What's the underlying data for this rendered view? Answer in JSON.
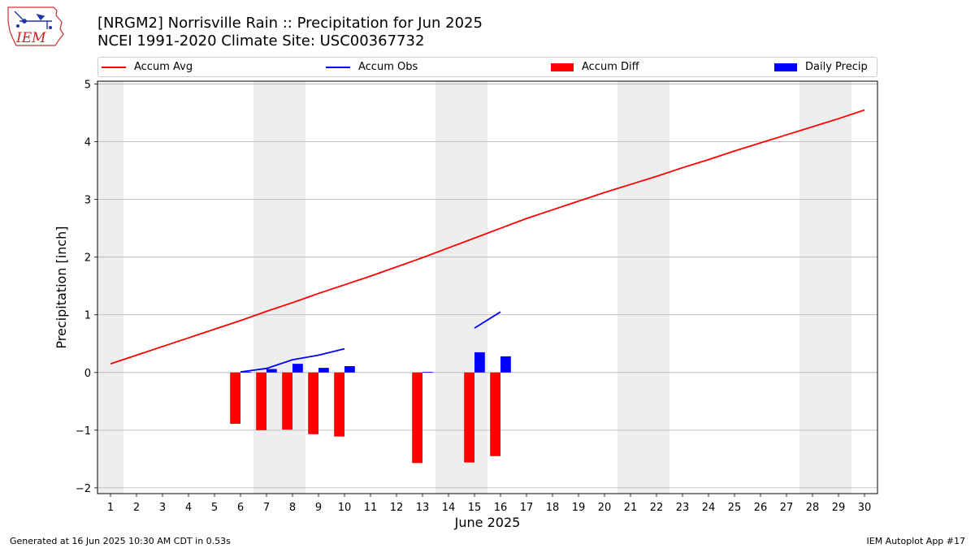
{
  "logo_text": "IEM",
  "header": {
    "title": "[NRGM2] Norrisville Rain :: Precipitation for Jun 2025",
    "subtitle": "NCEI 1991-2020 Climate Site: USC00367732"
  },
  "footer": {
    "left": "Generated at 16 Jun 2025 10:30 AM CDT in 0.53s",
    "right": "IEM Autoplot App #17"
  },
  "chart_data": {
    "type": "bar",
    "xlabel": "June 2025",
    "ylabel": "Precipitation [inch]",
    "xlim": [
      0.5,
      30.5
    ],
    "ylim": [
      -2.1,
      5.05
    ],
    "x_ticks": [
      "1",
      "2",
      "3",
      "4",
      "5",
      "6",
      "7",
      "8",
      "9",
      "10",
      "11",
      "12",
      "13",
      "14",
      "15",
      "16",
      "17",
      "18",
      "19",
      "20",
      "21",
      "22",
      "23",
      "24",
      "25",
      "26",
      "27",
      "28",
      "29",
      "30"
    ],
    "y_ticks": [
      -2,
      -1,
      0,
      1,
      2,
      3,
      4,
      5
    ],
    "y_tick_labels": [
      "−2",
      "−1",
      "0",
      "1",
      "2",
      "3",
      "4",
      "5"
    ],
    "grid": "horizontal",
    "legend_position": "top",
    "weekend_shading_days": [
      [
        1,
        1
      ],
      [
        7,
        8
      ],
      [
        14,
        15
      ],
      [
        21,
        22
      ],
      [
        28,
        29
      ]
    ],
    "series": [
      {
        "name": "Accum Avg",
        "kind": "line",
        "color": "#ff0000",
        "x": [
          1,
          2,
          3,
          4,
          5,
          6,
          7,
          8,
          9,
          10,
          11,
          12,
          13,
          14,
          15,
          16,
          17,
          18,
          19,
          20,
          21,
          22,
          23,
          24,
          25,
          26,
          27,
          28,
          29,
          30
        ],
        "values": [
          0.15,
          0.3,
          0.45,
          0.6,
          0.75,
          0.9,
          1.06,
          1.21,
          1.37,
          1.52,
          1.67,
          1.83,
          1.99,
          2.16,
          2.33,
          2.5,
          2.67,
          2.82,
          2.97,
          3.12,
          3.26,
          3.4,
          3.55,
          3.69,
          3.84,
          3.98,
          4.12,
          4.26,
          4.4,
          4.55
        ]
      },
      {
        "name": "Accum Obs",
        "kind": "line",
        "color": "#0000ff",
        "segments": [
          {
            "x": [
              6,
              7,
              8,
              9,
              10
            ],
            "values": [
              0.01,
              0.07,
              0.22,
              0.3,
              0.41
            ]
          },
          {
            "x": [
              15,
              16
            ],
            "values": [
              0.77,
              1.05
            ]
          }
        ]
      },
      {
        "name": "Accum Diff",
        "kind": "bar",
        "color": "#ff0000",
        "x": [
          6,
          7,
          8,
          9,
          10,
          13,
          15,
          16
        ],
        "values": [
          -0.89,
          -1.0,
          -0.99,
          -1.07,
          -1.11,
          -1.57,
          -1.56,
          -1.45
        ]
      },
      {
        "name": "Daily Precip",
        "kind": "bar",
        "color": "#0000ff",
        "x": [
          6,
          7,
          8,
          9,
          10,
          13,
          15,
          16
        ],
        "values": [
          0.01,
          0.06,
          0.15,
          0.08,
          0.11,
          0.01,
          0.35,
          0.28
        ]
      }
    ]
  }
}
